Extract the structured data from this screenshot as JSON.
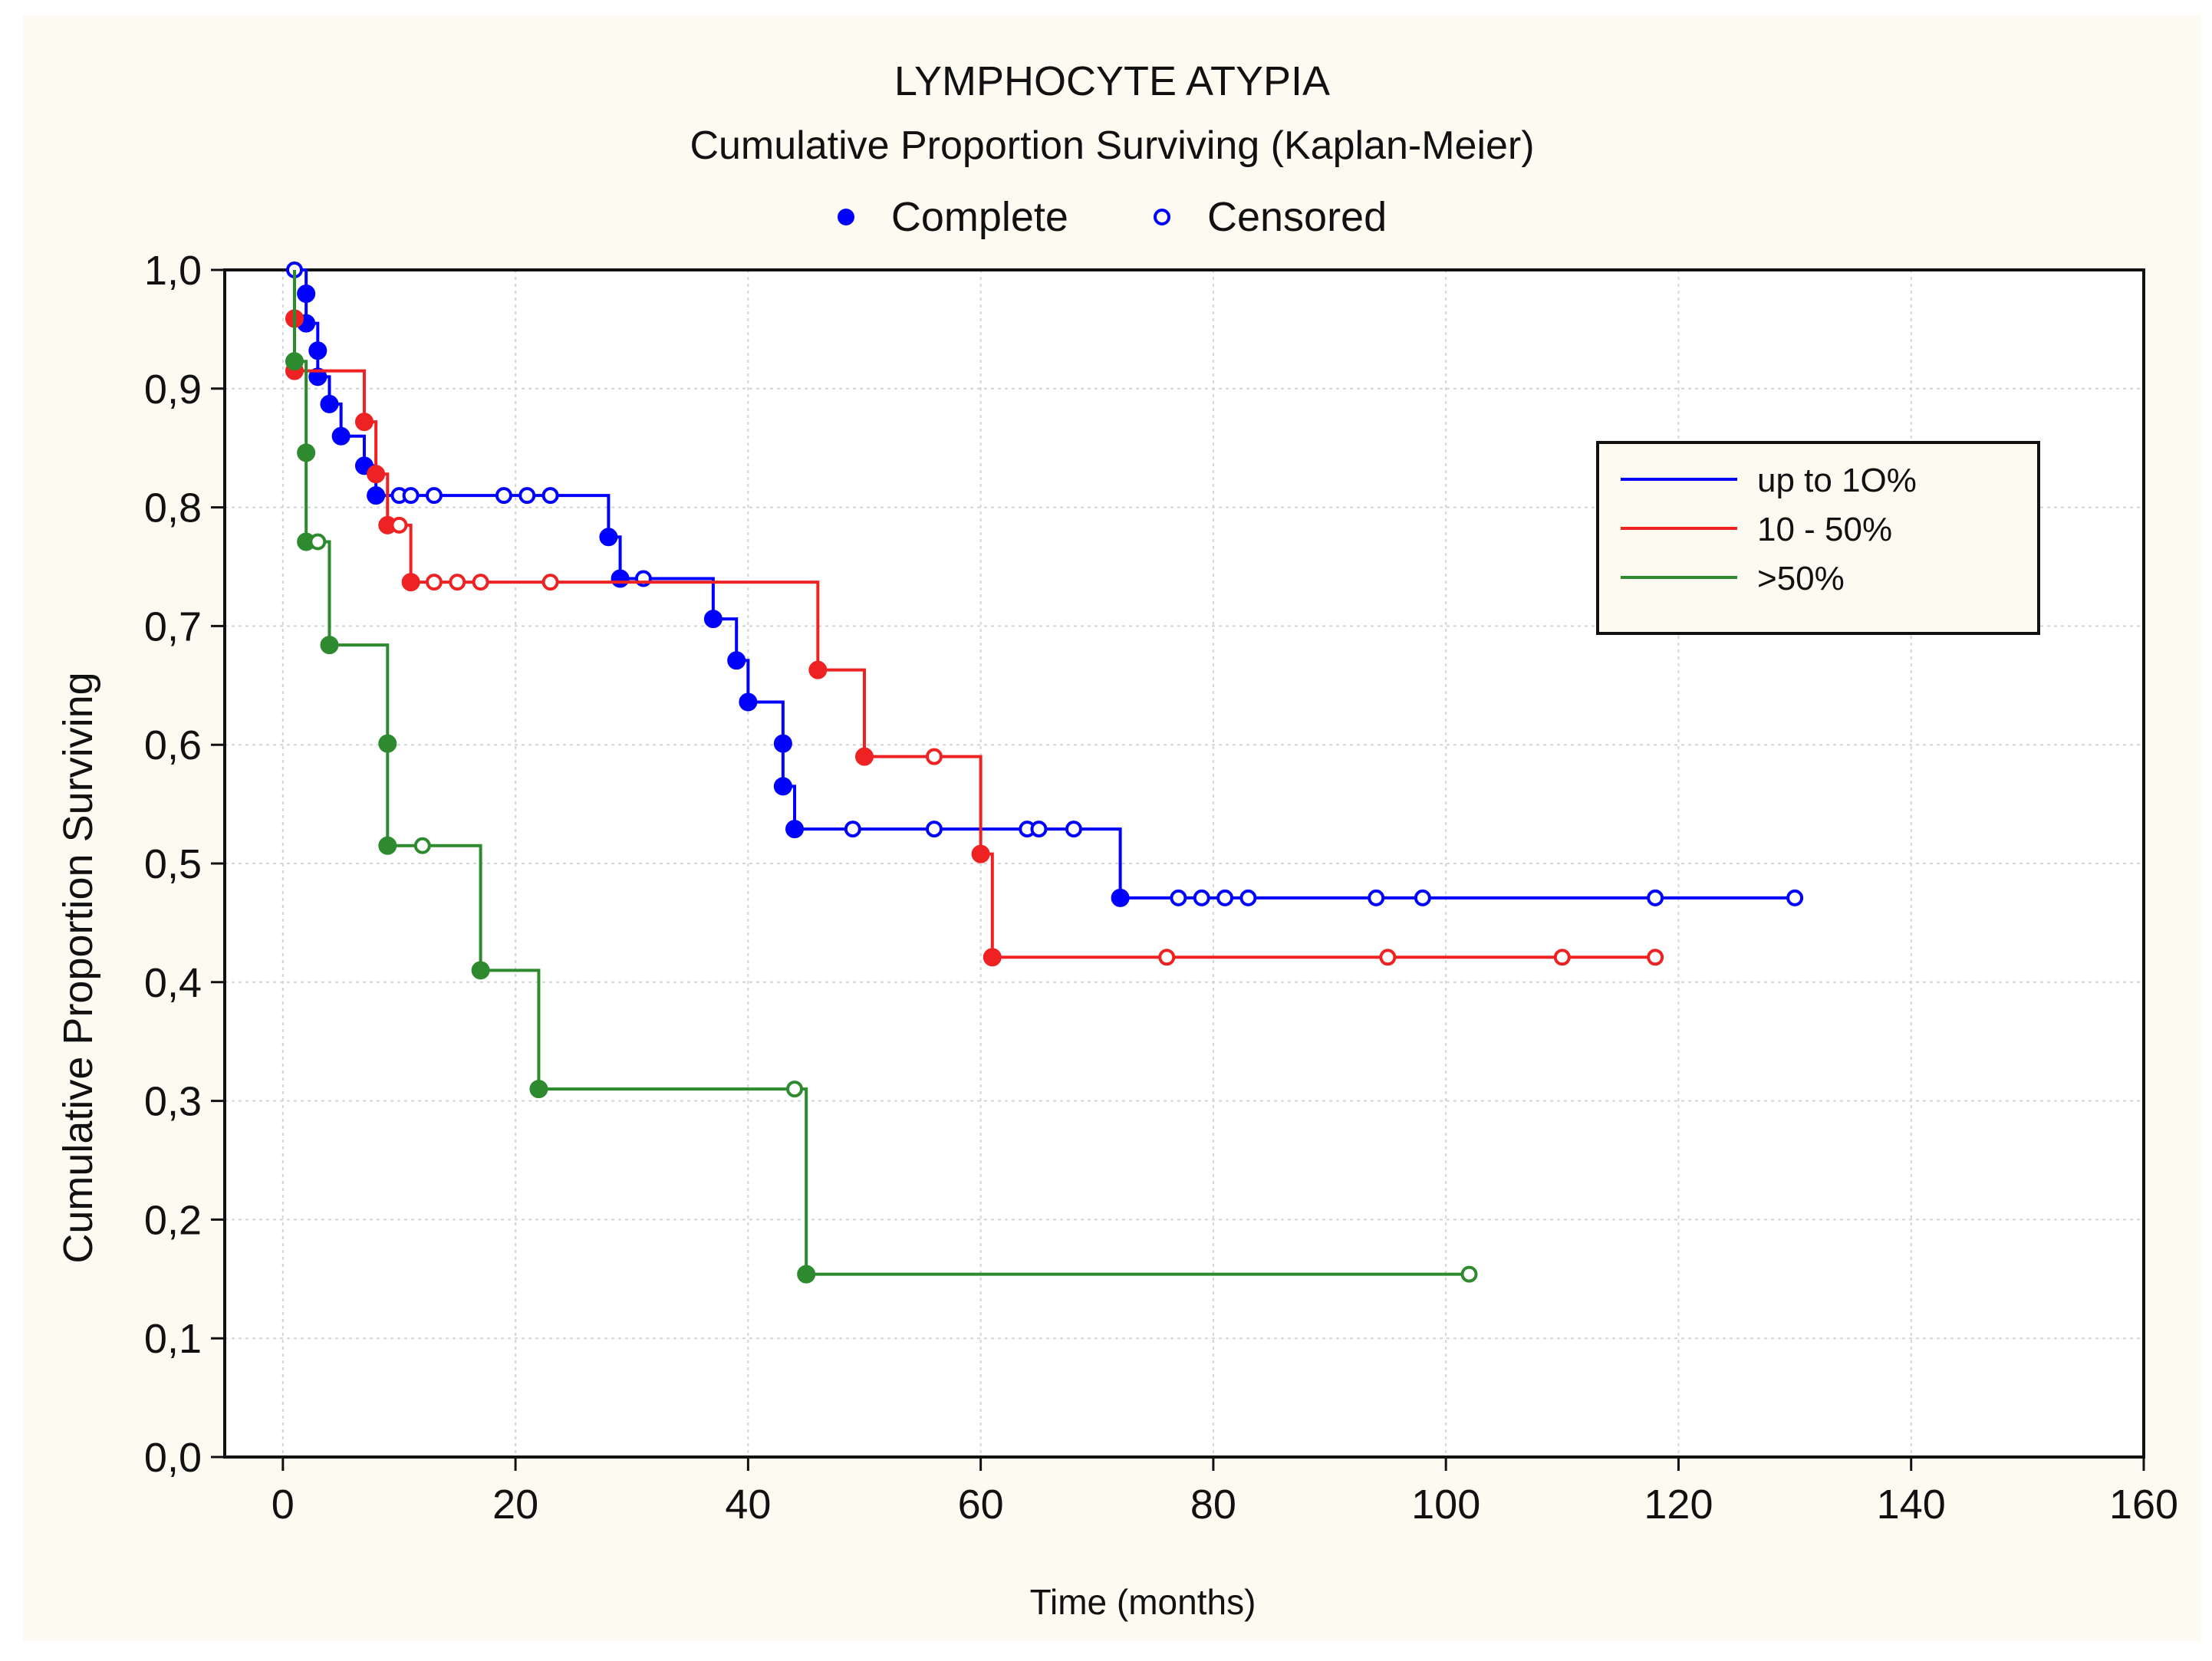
{
  "chart_data": {
    "type": "line",
    "title": "LYMPHOCYTE ATYPIA",
    "subtitle": "Cumulative Proportion Surviving (Kaplan-Meier)",
    "marker_legend": {
      "complete_label": "Complete",
      "censored_label": "Censored"
    },
    "xlabel": "Time (months)",
    "ylabel": "Cumulative Proportion Surviving",
    "xlim": [
      -5,
      160
    ],
    "ylim": [
      0,
      1.0
    ],
    "x_ticks": [
      "0",
      "20",
      "40",
      "60",
      "80",
      "100",
      "120",
      "140",
      "160"
    ],
    "x_tick_values": [
      0,
      20,
      40,
      60,
      80,
      100,
      120,
      140,
      160
    ],
    "y_ticks": [
      "0,0",
      "0,1",
      "0,2",
      "0,3",
      "0,4",
      "0,5",
      "0,6",
      "0,7",
      "0,8",
      "0,9",
      "1,0"
    ],
    "y_tick_values": [
      0,
      0.1,
      0.2,
      0.3,
      0.4,
      0.5,
      0.6,
      0.7,
      0.8,
      0.9,
      1.0
    ],
    "grid": true,
    "legend_position": "top-right",
    "series": [
      {
        "name": "up to 1O%",
        "color": "#0000ff",
        "steps": [
          [
            1,
            1.0
          ],
          [
            2,
            0.98
          ],
          [
            2,
            0.955
          ],
          [
            3,
            0.932
          ],
          [
            3,
            0.91
          ],
          [
            4,
            0.887
          ],
          [
            5,
            0.86
          ],
          [
            7,
            0.835
          ],
          [
            8,
            0.81
          ],
          [
            28,
            0.775
          ],
          [
            29,
            0.74
          ],
          [
            37,
            0.706
          ],
          [
            39,
            0.671
          ],
          [
            40,
            0.636
          ],
          [
            43,
            0.601
          ],
          [
            43,
            0.565
          ],
          [
            44,
            0.529
          ],
          [
            72,
            0.471
          ]
        ],
        "end_x": 130,
        "complete": [
          [
            2,
            0.98
          ],
          [
            2,
            0.955
          ],
          [
            3,
            0.932
          ],
          [
            3,
            0.91
          ],
          [
            4,
            0.887
          ],
          [
            5,
            0.86
          ],
          [
            7,
            0.835
          ],
          [
            8,
            0.81
          ],
          [
            28,
            0.775
          ],
          [
            29,
            0.74
          ],
          [
            37,
            0.706
          ],
          [
            39,
            0.671
          ],
          [
            40,
            0.636
          ],
          [
            43,
            0.601
          ],
          [
            43,
            0.565
          ],
          [
            44,
            0.529
          ],
          [
            72,
            0.471
          ]
        ],
        "censored": [
          [
            1,
            1.0
          ],
          [
            10,
            0.81
          ],
          [
            11,
            0.81
          ],
          [
            13,
            0.81
          ],
          [
            19,
            0.81
          ],
          [
            21,
            0.81
          ],
          [
            23,
            0.81
          ],
          [
            31,
            0.74
          ],
          [
            49,
            0.529
          ],
          [
            56,
            0.529
          ],
          [
            64,
            0.529
          ],
          [
            65,
            0.529
          ],
          [
            68,
            0.529
          ],
          [
            77,
            0.471
          ],
          [
            79,
            0.471
          ],
          [
            81,
            0.471
          ],
          [
            83,
            0.471
          ],
          [
            94,
            0.471
          ],
          [
            98,
            0.471
          ],
          [
            118,
            0.471
          ],
          [
            130,
            0.471
          ]
        ]
      },
      {
        "name": "10 - 50%",
        "color": "#ee2222",
        "steps": [
          [
            1,
            0.959
          ],
          [
            1,
            0.915
          ],
          [
            7,
            0.872
          ],
          [
            8,
            0.828
          ],
          [
            9,
            0.785
          ],
          [
            11,
            0.737
          ],
          [
            46,
            0.663
          ],
          [
            50,
            0.59
          ],
          [
            60,
            0.508
          ],
          [
            61,
            0.421
          ]
        ],
        "end_x": 118,
        "complete": [
          [
            1,
            0.959
          ],
          [
            1,
            0.915
          ],
          [
            7,
            0.872
          ],
          [
            8,
            0.828
          ],
          [
            9,
            0.785
          ],
          [
            11,
            0.737
          ],
          [
            46,
            0.663
          ],
          [
            50,
            0.59
          ],
          [
            60,
            0.508
          ],
          [
            61,
            0.421
          ]
        ],
        "censored": [
          [
            10,
            0.785
          ],
          [
            13,
            0.737
          ],
          [
            15,
            0.737
          ],
          [
            17,
            0.737
          ],
          [
            23,
            0.737
          ],
          [
            56,
            0.59
          ],
          [
            76,
            0.421
          ],
          [
            95,
            0.421
          ],
          [
            110,
            0.421
          ],
          [
            118,
            0.421
          ]
        ]
      },
      {
        "name": ">50%",
        "color": "#2e8a2e",
        "steps": [
          [
            1,
            0.923
          ],
          [
            2,
            0.846
          ],
          [
            2,
            0.771
          ],
          [
            4,
            0.684
          ],
          [
            9,
            0.601
          ],
          [
            9,
            0.515
          ],
          [
            17,
            0.41
          ],
          [
            22,
            0.31
          ],
          [
            45,
            0.154
          ]
        ],
        "end_x": 102,
        "complete": [
          [
            1,
            0.923
          ],
          [
            2,
            0.846
          ],
          [
            2,
            0.771
          ],
          [
            4,
            0.684
          ],
          [
            9,
            0.601
          ],
          [
            9,
            0.515
          ],
          [
            17,
            0.41
          ],
          [
            22,
            0.31
          ],
          [
            45,
            0.154
          ]
        ],
        "censored": [
          [
            3,
            0.771
          ],
          [
            12,
            0.515
          ],
          [
            44,
            0.31
          ],
          [
            102,
            0.154
          ]
        ]
      }
    ]
  }
}
